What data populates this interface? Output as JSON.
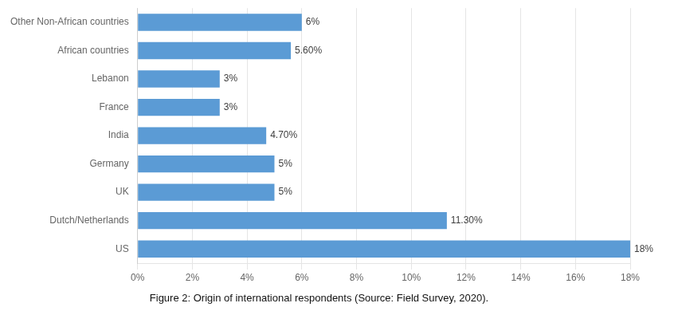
{
  "chart_data": {
    "type": "bar",
    "orientation": "horizontal",
    "title": "Figure 2: Origin of international respondents (Source: Field Survey, 2020).",
    "categories": [
      "US",
      "Dutch/Netherlands",
      "UK",
      "Germany",
      "India",
      "France",
      "Lebanon",
      "African countries",
      "Other Non-African countries"
    ],
    "values": [
      18,
      11.3,
      5,
      5,
      4.7,
      3,
      3,
      5.6,
      6
    ],
    "value_labels": [
      "18%",
      "11.30%",
      "5%",
      "5%",
      "4.70%",
      "3%",
      "3%",
      "5.60%",
      "6%"
    ],
    "data_labels": true,
    "color": "#5b9bd5",
    "xlim": [
      0,
      18
    ],
    "xticks": [
      {
        "value": 0,
        "label": "0%"
      },
      {
        "value": 2,
        "label": "2%"
      },
      {
        "value": 4,
        "label": "4%"
      },
      {
        "value": 6,
        "label": "6%"
      },
      {
        "value": 8,
        "label": "8%"
      },
      {
        "value": 10,
        "label": "10%"
      },
      {
        "value": 12,
        "label": "12%"
      },
      {
        "value": 14,
        "label": "14%"
      },
      {
        "value": 16,
        "label": "16%"
      },
      {
        "value": 18,
        "label": "18%"
      }
    ],
    "grid": true
  }
}
